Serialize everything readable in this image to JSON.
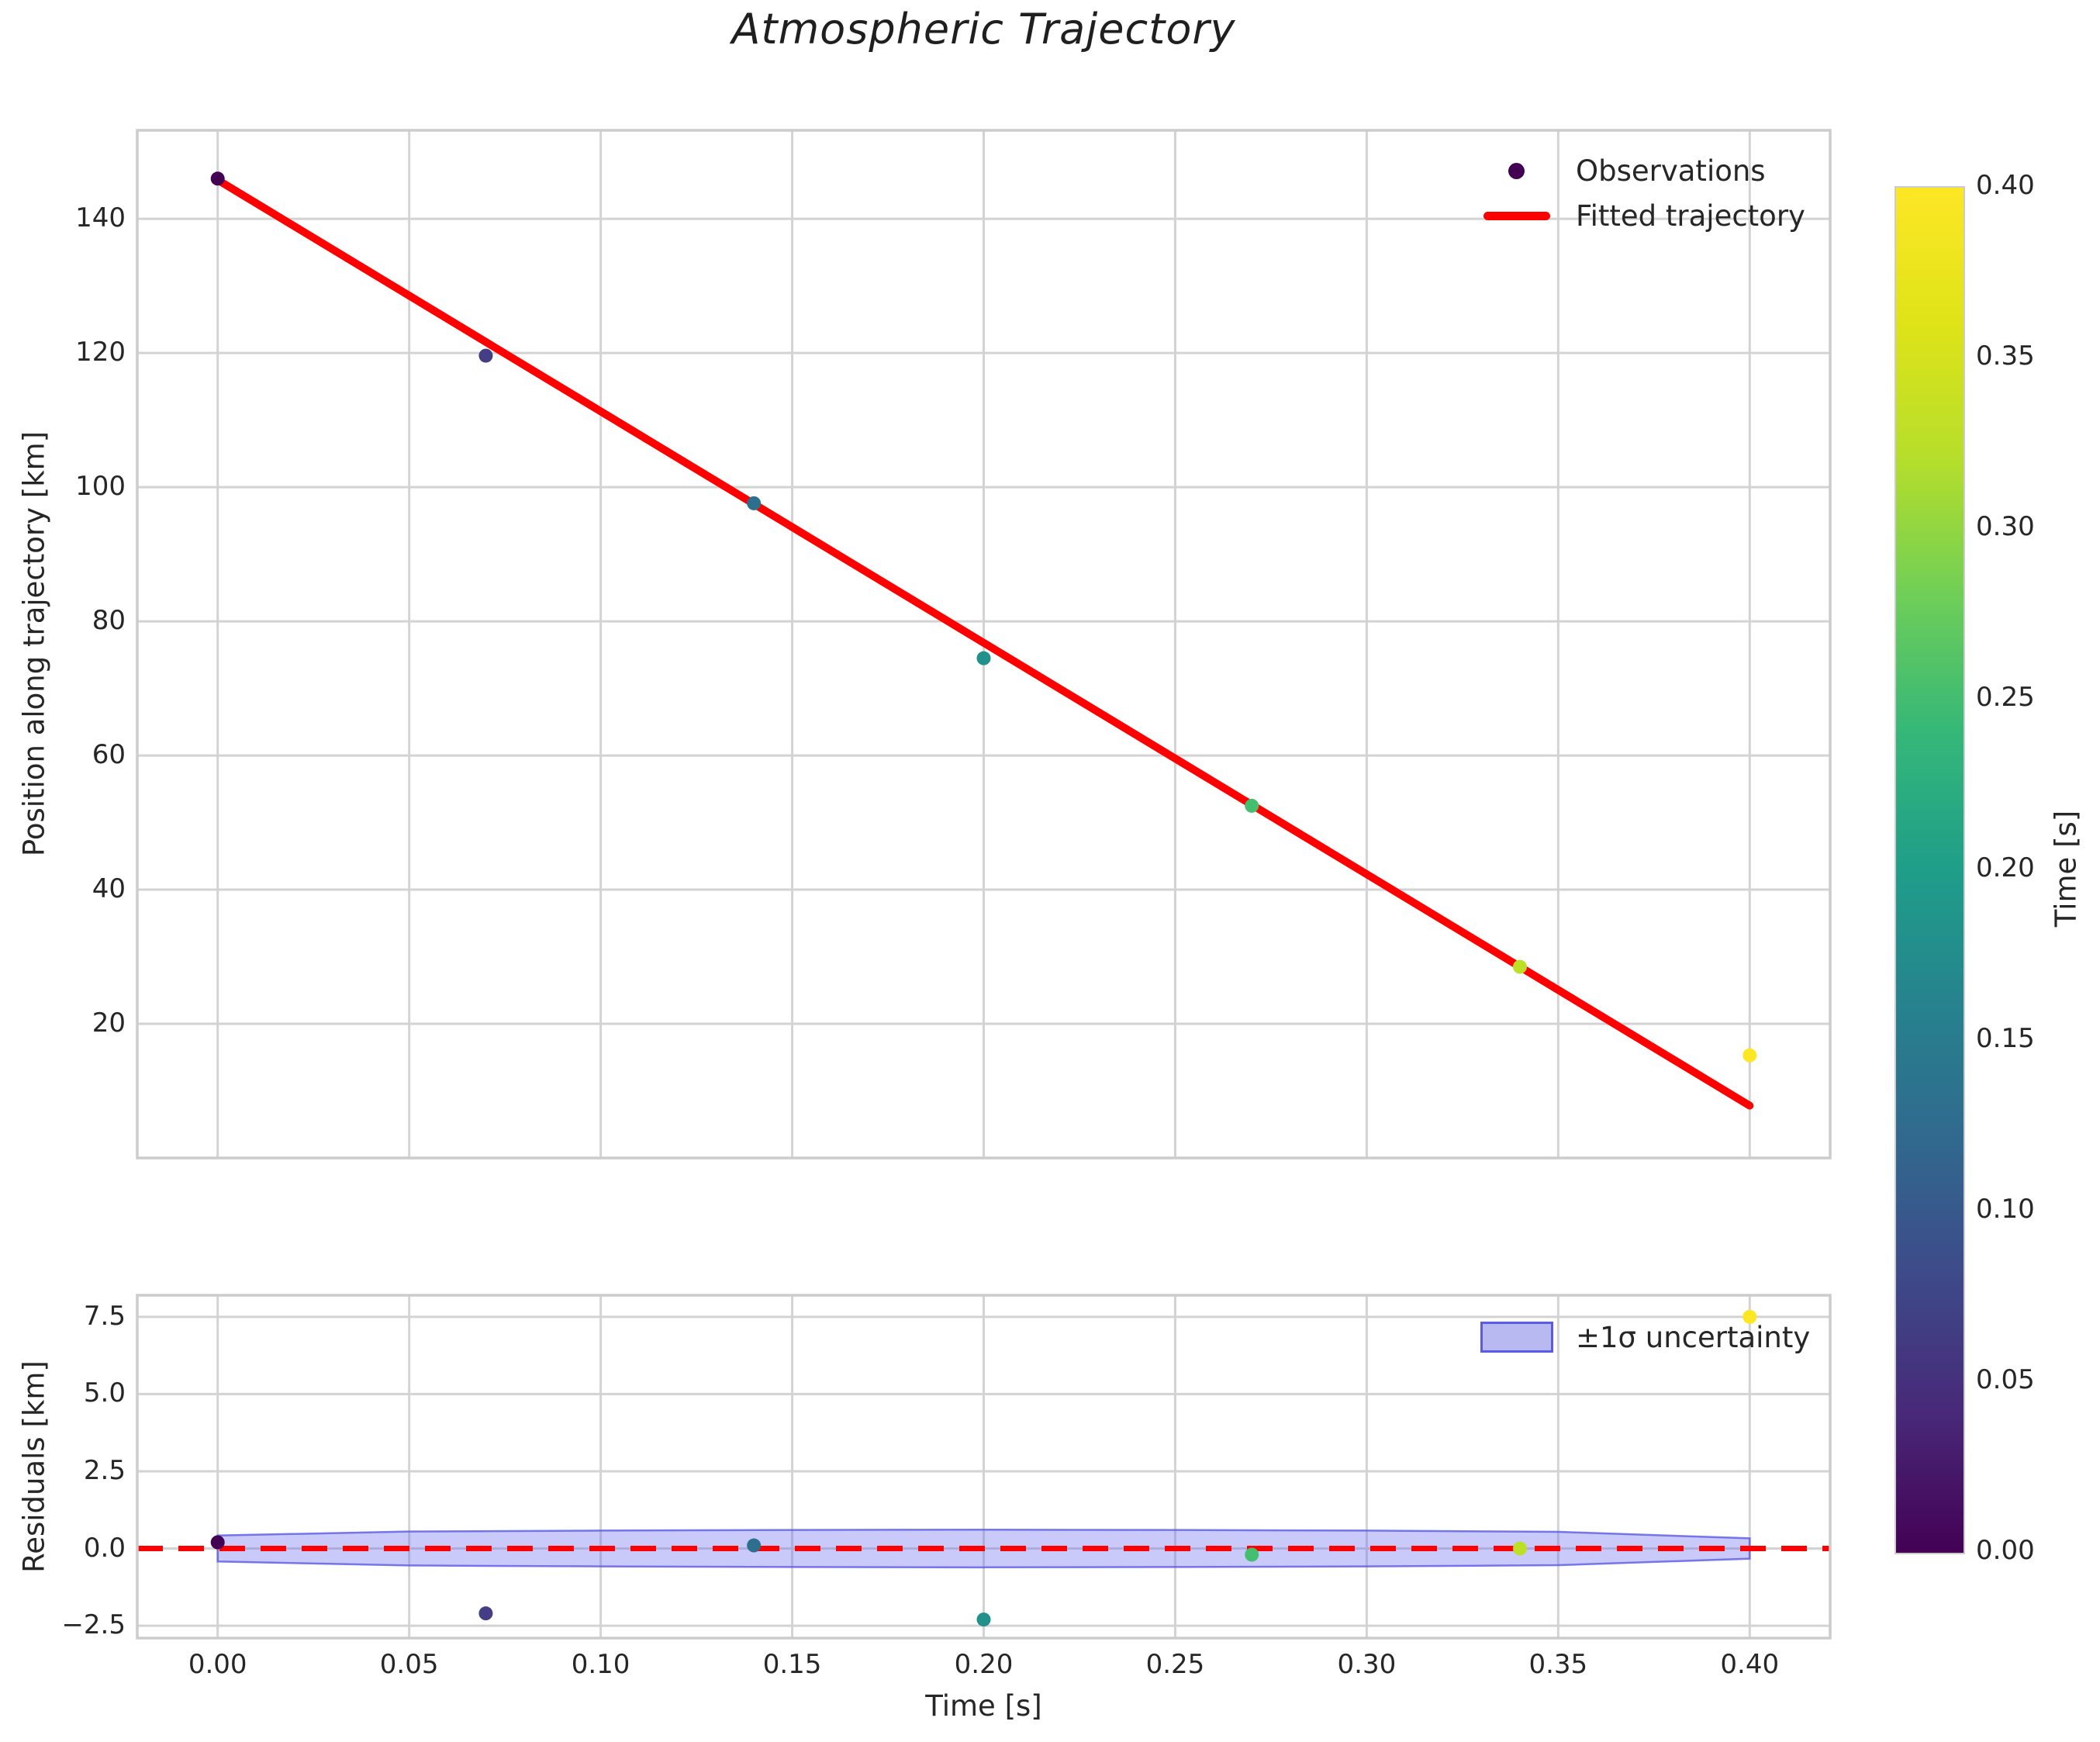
{
  "figure": {
    "background": "#ffffff",
    "grid_color": "#d3d3d3",
    "spine_color": "#cccccc",
    "text_color": "#262626"
  },
  "chart_data": [
    {
      "type": "scatter",
      "title": "Atmospheric Trajectory",
      "ylabel": "Position along trajectory [km]",
      "xlim": [
        -0.021,
        0.421
      ],
      "ylim": [
        0,
        153.2
      ],
      "grid": true,
      "legend_position": "upper right",
      "legend": [
        "Observations",
        "Fitted trajectory"
      ],
      "xticks": [
        0.0,
        0.05,
        0.1,
        0.15,
        0.2,
        0.25,
        0.3,
        0.35,
        0.4
      ],
      "yticks": [
        20,
        40,
        60,
        80,
        100,
        120,
        140
      ],
      "ytick_labels": [
        "20",
        "40",
        "60",
        "80",
        "100",
        "120",
        "140"
      ],
      "series": [
        {
          "name": "Observations",
          "type": "scatter",
          "x": [
            0.0,
            0.07,
            0.14,
            0.2,
            0.27,
            0.34,
            0.4
          ],
          "y": [
            146.0,
            119.6,
            97.6,
            74.5,
            52.5,
            28.5,
            15.3
          ],
          "point_colors": [
            "#440154",
            "#433e85",
            "#2d708e",
            "#21918c",
            "#44bf70",
            "#bddf26",
            "#fde725"
          ],
          "colormap": "viridis",
          "color_values": [
            0.0,
            0.07,
            0.14,
            0.2,
            0.27,
            0.34,
            0.4
          ]
        },
        {
          "name": "Fitted trajectory",
          "type": "line",
          "x": [
            0.0,
            0.4
          ],
          "y": [
            145.8,
            7.8
          ],
          "color": "#ff0000",
          "linewidth": 10
        }
      ]
    },
    {
      "type": "residuals",
      "ylabel": "Residuals [km]",
      "xlabel": "Time [s]",
      "xlim": [
        -0.021,
        0.421
      ],
      "ylim": [
        -2.9,
        8.2
      ],
      "grid": true,
      "xticks": [
        0.0,
        0.05,
        0.1,
        0.15,
        0.2,
        0.25,
        0.3,
        0.35,
        0.4
      ],
      "xtick_labels": [
        "0.00",
        "0.05",
        "0.10",
        "0.15",
        "0.20",
        "0.25",
        "0.30",
        "0.35",
        "0.40"
      ],
      "yticks": [
        -2.5,
        0.0,
        2.5,
        5.0,
        7.5
      ],
      "ytick_labels": [
        "−2.5",
        "0.0",
        "2.5",
        "5.0",
        "7.5"
      ],
      "points": {
        "x": [
          0.0,
          0.07,
          0.14,
          0.2,
          0.27,
          0.34,
          0.4
        ],
        "y": [
          0.2,
          -2.1,
          0.1,
          -2.3,
          -0.2,
          0.0,
          7.5
        ],
        "point_colors": [
          "#440154",
          "#433e85",
          "#2d708e",
          "#21918c",
          "#44bf70",
          "#bddf26",
          "#fde725"
        ]
      },
      "zero_line": {
        "y": 0.0,
        "color": "#ff0000",
        "style": "dashed",
        "dash": [
          33,
          20
        ],
        "linewidth": 7
      },
      "band": {
        "label": "±1σ uncertainty",
        "fill_color": "#6464f0",
        "fill_opacity": 0.35,
        "edge_color": "#5a5ae6",
        "edge_opacity": 0.8,
        "x": [
          0.0,
          0.05,
          0.1,
          0.15,
          0.2,
          0.25,
          0.3,
          0.35,
          0.4
        ],
        "upper": [
          0.42,
          0.55,
          0.58,
          0.6,
          0.61,
          0.6,
          0.58,
          0.54,
          0.33
        ],
        "lower": [
          -0.42,
          -0.55,
          -0.58,
          -0.6,
          -0.61,
          -0.6,
          -0.58,
          -0.54,
          -0.33
        ]
      }
    },
    {
      "type": "colorbar",
      "label": "Time [s]",
      "range": [
        0.0,
        0.4
      ],
      "tick_values": [
        0.4,
        0.35,
        0.3,
        0.25,
        0.2,
        0.15,
        0.1,
        0.05,
        0.0
      ],
      "tick_labels": [
        "0.40",
        "0.35",
        "0.30",
        "0.25",
        "0.20",
        "0.15",
        "0.10",
        "0.05",
        "0.00"
      ],
      "cmap_stops": [
        "#440154",
        "#482878",
        "#3e4989",
        "#31688e",
        "#26828e",
        "#1f9e89",
        "#35b779",
        "#6ece58",
        "#b5de2b",
        "#dfe318",
        "#fde725"
      ]
    }
  ]
}
